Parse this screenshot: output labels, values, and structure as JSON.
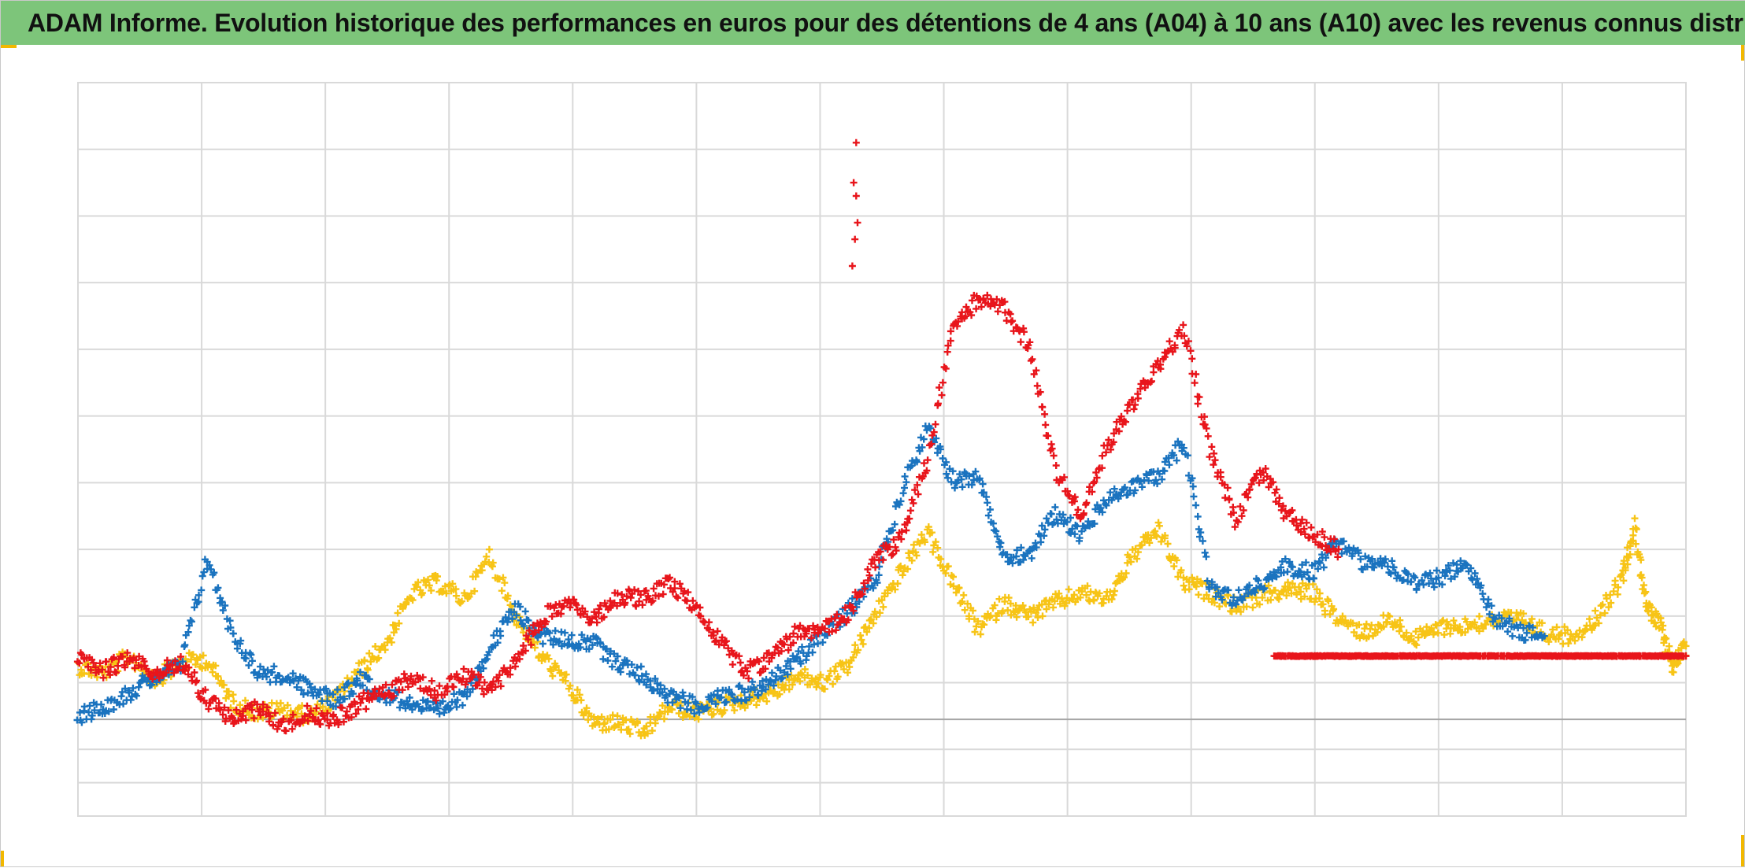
{
  "title": "ADAM Informe. Evolution historique des performances en euros pour des détentions de 4 ans (A04) à 10 ans (A10) avec les revenus connus distribués",
  "colors": {
    "title_bar": "#7dc57a",
    "grid": "#d9d9d9",
    "zero_line": "#a6a6a6",
    "corner_marks": "#f2b800"
  },
  "chart_data": {
    "type": "scatter",
    "marker": "plus",
    "title": "ADAM Informe. Evolution historique des performances en euros pour des détentions de 4 ans (A04) à 10 ans (A10) avec les revenus connus distribués",
    "xlabel": "",
    "ylabel": "",
    "grid": true,
    "legend": "none",
    "x_gridlines": 13,
    "xlim": [
      0,
      125
    ],
    "ylim": [
      -4,
      18
    ],
    "y_gridlines": [
      -4,
      -3,
      -2,
      0,
      2,
      4,
      6,
      8,
      10,
      12,
      14,
      16
    ],
    "zero_line": -1.1,
    "series": [
      {
        "color": "#e8151b",
        "x": [
          0,
          2,
          4,
          6,
          8,
          10,
          12,
          14,
          16,
          18,
          20,
          22,
          24,
          26,
          28,
          30,
          32,
          34,
          36,
          38,
          40,
          42,
          44,
          46,
          48,
          50,
          52,
          54,
          56,
          58,
          60,
          62,
          64,
          66,
          68,
          70,
          72,
          74,
          76,
          78,
          80,
          82,
          84,
          86,
          88,
          90,
          92,
          94,
          96,
          98
        ],
        "y": [
          0.8,
          0.4,
          0.7,
          0.3,
          0.6,
          -0.5,
          -1.1,
          -0.8,
          -1.3,
          -0.9,
          -1.1,
          -0.6,
          -0.3,
          0.2,
          -0.3,
          0.2,
          -0.2,
          0.6,
          1.9,
          2.4,
          1.9,
          2.6,
          2.5,
          3.0,
          2.3,
          1.2,
          0.3,
          0.8,
          1.5,
          1.6,
          2.1,
          3.7,
          4.3,
          6.6,
          10.7,
          11.5,
          11.2,
          10.1,
          6.4,
          5.0,
          7.1,
          8.4,
          9.5,
          10.6,
          7.0,
          4.9,
          6.4,
          5.0,
          4.5,
          4.0
        ]
      },
      {
        "color": "#1a73bf",
        "x": [
          0,
          2,
          4,
          6,
          8,
          10,
          12,
          14,
          16,
          18,
          20,
          22,
          24,
          26,
          28,
          30,
          32,
          34,
          36,
          38,
          40,
          42,
          44,
          46,
          48,
          50,
          52,
          54,
          56,
          58,
          60,
          62,
          64,
          66,
          68,
          70,
          72,
          74,
          76,
          78,
          80,
          82,
          84,
          86,
          88,
          90,
          92,
          94,
          96,
          98,
          100,
          102,
          104,
          106,
          108,
          110,
          112,
          114
        ],
        "y": [
          -1.0,
          -0.7,
          -0.3,
          0.2,
          0.5,
          3.7,
          1.5,
          0.3,
          0.2,
          -0.2,
          -0.5,
          0.1,
          -0.4,
          -0.6,
          -0.9,
          -0.4,
          1.0,
          2.2,
          1.4,
          1.3,
          1.2,
          0.6,
          0.2,
          -0.4,
          -0.7,
          -0.4,
          -0.3,
          0.1,
          0.7,
          1.5,
          2.2,
          3.1,
          5.7,
          7.6,
          6.1,
          6.1,
          3.8,
          3.9,
          5.1,
          4.4,
          5.5,
          5.9,
          6.2,
          7.2,
          2.8,
          2.5,
          3.0,
          3.5,
          3.3,
          4.2,
          3.6,
          3.5,
          2.9,
          3.2,
          3.5,
          2.0,
          1.5,
          1.4
        ]
      },
      {
        "color": "#f7c416",
        "x": [
          0,
          2,
          4,
          6,
          8,
          10,
          12,
          14,
          16,
          18,
          20,
          22,
          24,
          26,
          28,
          30,
          32,
          34,
          36,
          38,
          40,
          42,
          44,
          46,
          48,
          50,
          52,
          54,
          56,
          58,
          60,
          62,
          64,
          66,
          68,
          70,
          72,
          74,
          76,
          78,
          80,
          82,
          84,
          86,
          88,
          90,
          92,
          94,
          96,
          98,
          100,
          102,
          104,
          106,
          108,
          110,
          112,
          114,
          116,
          118,
          120,
          121,
          122,
          123,
          124,
          125
        ],
        "y": [
          0.5,
          0.3,
          0.8,
          0.1,
          0.6,
          0.7,
          -0.6,
          -0.9,
          -0.8,
          -1.0,
          -0.5,
          0.4,
          1.2,
          2.7,
          3.0,
          2.5,
          3.8,
          2.0,
          0.8,
          0.0,
          -1.2,
          -1.2,
          -1.5,
          -0.7,
          -0.9,
          -0.7,
          -0.5,
          -0.3,
          0.2,
          0.0,
          0.6,
          2.1,
          3.3,
          4.5,
          3.0,
          1.6,
          2.4,
          2.0,
          2.4,
          2.7,
          2.5,
          3.8,
          4.6,
          3.0,
          2.7,
          2.3,
          2.6,
          2.8,
          2.7,
          1.9,
          1.5,
          1.9,
          1.3,
          1.7,
          1.7,
          1.9,
          1.9,
          1.5,
          1.4,
          1.9,
          3.1,
          4.7,
          2.2,
          1.7,
          0.5,
          1.1
        ]
      },
      {
        "color": "#e8151b",
        "x": [
          93,
          95,
          97,
          99,
          101,
          103,
          105,
          107,
          109,
          111,
          113,
          115,
          117,
          119,
          121,
          123,
          125
        ],
        "y": [
          0.8,
          0.8,
          0.8,
          0.8,
          0.8,
          0.8,
          0.8,
          0.8,
          0.8,
          0.8,
          0.8,
          0.8,
          0.8,
          0.8,
          0.8,
          0.8,
          0.8
        ]
      }
    ],
    "annotations": [
      {
        "color": "#e8151b",
        "x": [
          60.3,
          60.5,
          60.6,
          60.4,
          60.2,
          60.5
        ],
        "y": [
          15.0,
          14.6,
          13.8,
          13.3,
          12.5,
          16.2
        ]
      }
    ]
  }
}
